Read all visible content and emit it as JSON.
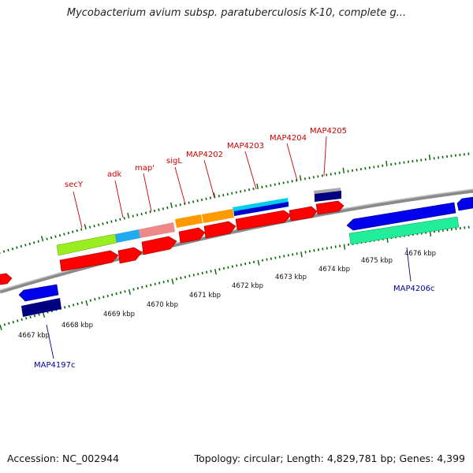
{
  "header": {
    "title": "Mycobacterium avium subsp. paratuberculosis K-10, complete g..."
  },
  "footer": {
    "accession": "Accession: NC_002944",
    "topology": "Topology: circular; Length: 4,829,781 bp; Genes: 4,399"
  },
  "colors": {
    "gene_red": "#ff0000",
    "gene_blue": "#0000ee",
    "gene_navy": "#000080",
    "backbone": "#888888",
    "tick_green": "#006600",
    "label_red": "#cc0000",
    "label_blue": "#000099"
  },
  "scale_labels": [
    "4667 kbp",
    "4668 kbp",
    "4669 kbp",
    "4670 kbp",
    "4671 kbp",
    "4672 kbp",
    "4673 kbp",
    "4674 kbp",
    "4675 kbp",
    "4676 kbp"
  ],
  "gene_labels_top": [
    "secY",
    "adk",
    "map'",
    "sigL",
    "MAP4202",
    "MAP4203",
    "MAP4204",
    "MAP4205"
  ],
  "gene_labels_bottom": [
    "MAP4197c",
    "MAP4206c"
  ]
}
